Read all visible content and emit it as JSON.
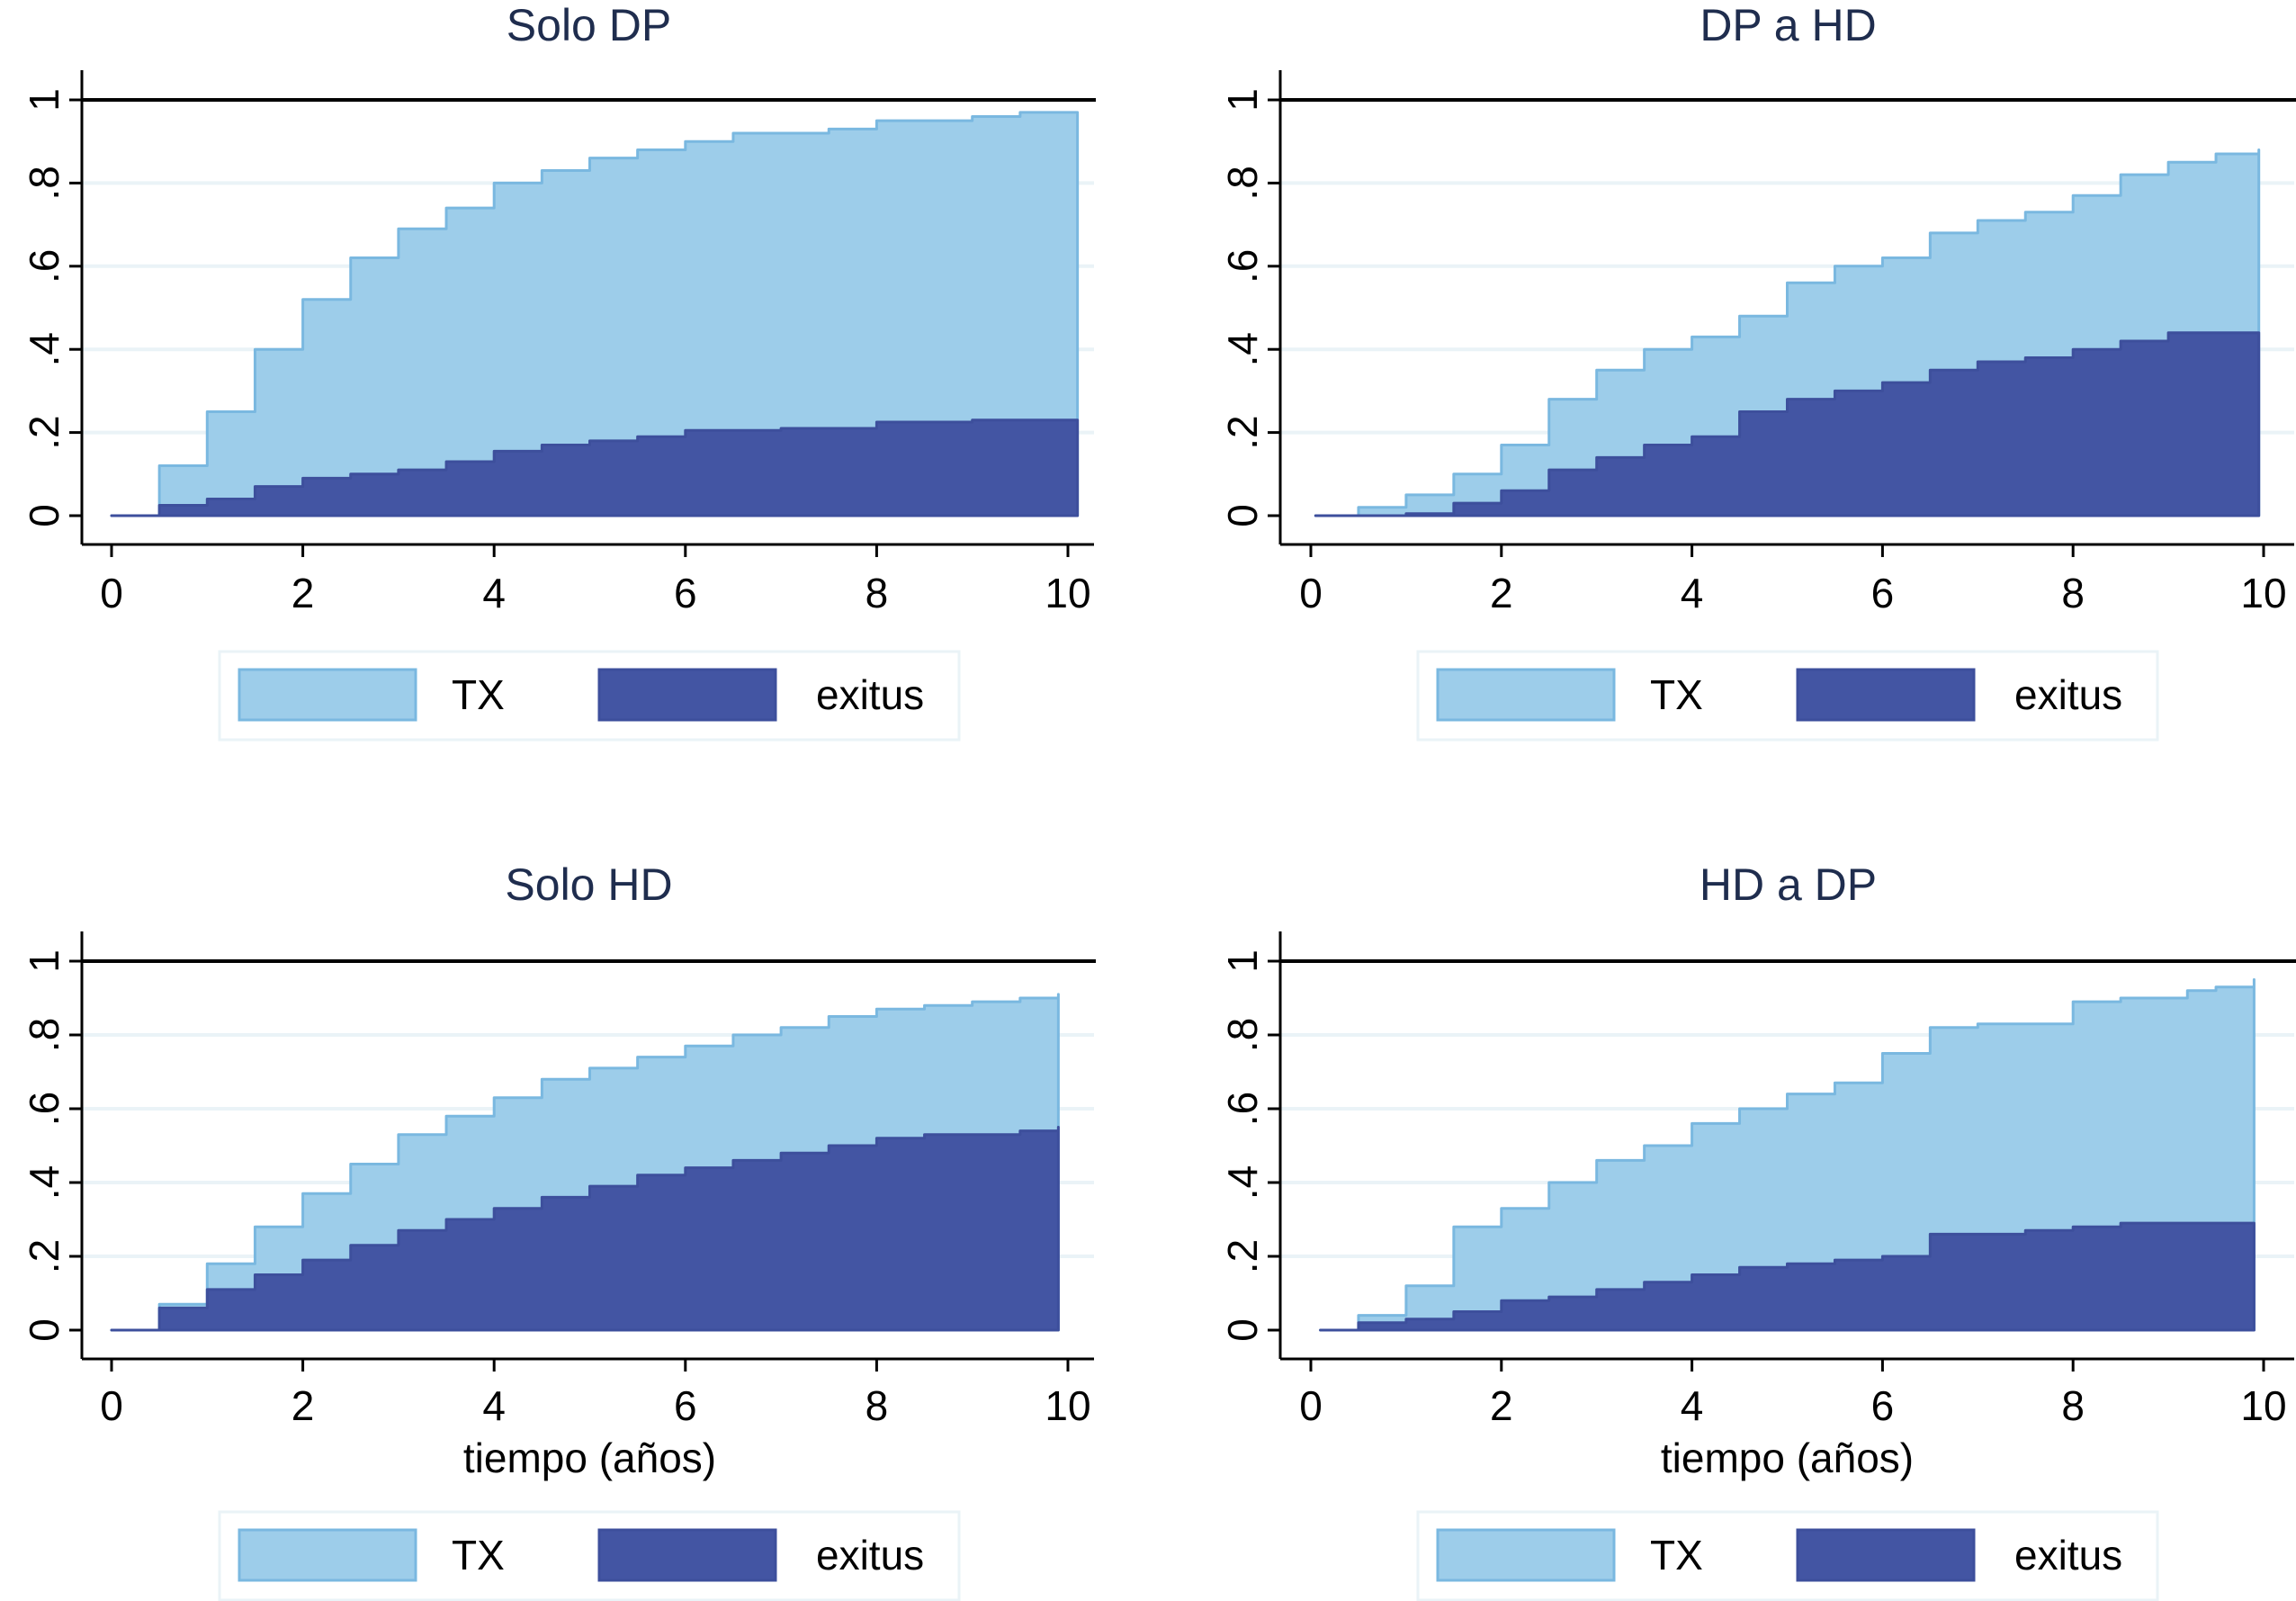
{
  "chart_data": [
    {
      "type": "area",
      "title": "Solo DP",
      "xlabel": "",
      "ylabel": "",
      "xlim": [
        0,
        10
      ],
      "ylim": [
        0,
        1
      ],
      "xticks": [
        "0",
        "2",
        "4",
        "6",
        "8",
        "10"
      ],
      "yticks": [
        "0",
        ".2",
        ".4",
        ".6",
        ".8",
        "1"
      ],
      "reference_line_y": 1,
      "grid": true,
      "legend": {
        "position": "bottom",
        "entries": [
          "TX",
          "exitus"
        ]
      },
      "series": [
        {
          "name": "TX",
          "color": "#9dcdea",
          "stacked_top": true,
          "x": [
            0,
            0.5,
            1,
            1.5,
            2,
            2.5,
            3,
            3.5,
            4,
            4.5,
            5,
            5.5,
            6,
            6.5,
            7,
            7.5,
            8,
            8.5,
            9,
            9.5,
            10.1
          ],
          "y": [
            0,
            0.12,
            0.25,
            0.4,
            0.52,
            0.62,
            0.69,
            0.74,
            0.8,
            0.83,
            0.86,
            0.88,
            0.9,
            0.92,
            0.92,
            0.93,
            0.95,
            0.95,
            0.96,
            0.97,
            0.97
          ]
        },
        {
          "name": "exitus",
          "color": "#4355a3",
          "x": [
            0,
            0.5,
            1,
            1.5,
            2,
            2.5,
            3,
            3.5,
            4,
            4.5,
            5,
            5.5,
            6,
            7,
            8,
            9,
            10.1
          ],
          "y": [
            0,
            0.025,
            0.04,
            0.07,
            0.09,
            0.1,
            0.11,
            0.13,
            0.155,
            0.17,
            0.18,
            0.19,
            0.205,
            0.21,
            0.225,
            0.23,
            0.23
          ]
        }
      ]
    },
    {
      "type": "area",
      "title": "DP a HD",
      "xlabel": "",
      "ylabel": "",
      "xlim": [
        0,
        10
      ],
      "ylim": [
        0,
        1
      ],
      "xticks": [
        "0",
        "2",
        "4",
        "6",
        "8",
        "10"
      ],
      "yticks": [
        "0",
        ".2",
        ".4",
        ".6",
        ".8",
        "1"
      ],
      "reference_line_y": 1,
      "grid": true,
      "legend": {
        "position": "bottom",
        "entries": [
          "TX",
          "exitus"
        ]
      },
      "series": [
        {
          "name": "TX",
          "color": "#9dcdea",
          "x": [
            0.05,
            0.5,
            1,
            1.5,
            2,
            2.5,
            3,
            3.5,
            4,
            4.5,
            5,
            5.5,
            6,
            6.5,
            7,
            7.5,
            8,
            8.5,
            9,
            9.5,
            9.95
          ],
          "y": [
            0,
            0.02,
            0.05,
            0.1,
            0.17,
            0.28,
            0.35,
            0.4,
            0.43,
            0.48,
            0.56,
            0.6,
            0.62,
            0.68,
            0.71,
            0.73,
            0.77,
            0.82,
            0.85,
            0.87,
            0.88
          ]
        },
        {
          "name": "exitus",
          "color": "#4355a3",
          "x": [
            0.05,
            1,
            1.5,
            2,
            2.5,
            3,
            3.5,
            4,
            4.5,
            5,
            5.5,
            6,
            6.5,
            7,
            7.5,
            8,
            8.5,
            9,
            9.95
          ],
          "y": [
            0,
            0.005,
            0.03,
            0.06,
            0.11,
            0.14,
            0.17,
            0.19,
            0.25,
            0.28,
            0.3,
            0.32,
            0.35,
            0.37,
            0.38,
            0.4,
            0.42,
            0.44,
            0.44
          ]
        }
      ]
    },
    {
      "type": "area",
      "title": "Solo HD",
      "xlabel": "tiempo (años)",
      "ylabel": "",
      "xlim": [
        0,
        10
      ],
      "ylim": [
        0,
        1
      ],
      "xticks": [
        "0",
        "2",
        "4",
        "6",
        "8",
        "10"
      ],
      "yticks": [
        "0",
        ".2",
        ".4",
        ".6",
        ".8",
        "1"
      ],
      "reference_line_y": 1,
      "grid": true,
      "legend": {
        "position": "bottom",
        "entries": [
          "TX",
          "exitus"
        ]
      },
      "series": [
        {
          "name": "TX",
          "color": "#9dcdea",
          "x": [
            0,
            0.5,
            1,
            1.5,
            2,
            2.5,
            3,
            3.5,
            4,
            4.5,
            5,
            5.5,
            6,
            6.5,
            7,
            7.5,
            8,
            8.5,
            9,
            9.5,
            9.9
          ],
          "y": [
            0,
            0.07,
            0.18,
            0.28,
            0.37,
            0.45,
            0.53,
            0.58,
            0.63,
            0.68,
            0.71,
            0.74,
            0.77,
            0.8,
            0.82,
            0.85,
            0.87,
            0.88,
            0.89,
            0.9,
            0.91
          ]
        },
        {
          "name": "exitus",
          "color": "#4355a3",
          "x": [
            0,
            0.5,
            1,
            1.5,
            2,
            2.5,
            3,
            3.5,
            4,
            4.5,
            5,
            5.5,
            6,
            6.5,
            7,
            7.5,
            8,
            8.5,
            9,
            9.5,
            9.9
          ],
          "y": [
            0,
            0.06,
            0.11,
            0.15,
            0.19,
            0.23,
            0.27,
            0.3,
            0.33,
            0.36,
            0.39,
            0.42,
            0.44,
            0.46,
            0.48,
            0.5,
            0.52,
            0.53,
            0.53,
            0.54,
            0.55
          ]
        }
      ]
    },
    {
      "type": "area",
      "title": "HD a DP",
      "xlabel": "tiempo (años)",
      "ylabel": "",
      "xlim": [
        0,
        10
      ],
      "ylim": [
        0,
        1
      ],
      "xticks": [
        "0",
        "2",
        "4",
        "6",
        "8",
        "10"
      ],
      "yticks": [
        "0",
        ".2",
        ".4",
        ".6",
        ".8",
        "1"
      ],
      "reference_line_y": 1,
      "grid": true,
      "legend": {
        "position": "bottom",
        "entries": [
          "TX",
          "exitus"
        ]
      },
      "series": [
        {
          "name": "TX",
          "color": "#9dcdea",
          "x": [
            0.1,
            0.5,
            1,
            1.5,
            2,
            2.5,
            3,
            3.5,
            4,
            4.5,
            5,
            5.5,
            6,
            6.5,
            7,
            7.5,
            8,
            8.5,
            9,
            9.2,
            9.5,
            9.9
          ],
          "y": [
            0,
            0.04,
            0.12,
            0.28,
            0.33,
            0.4,
            0.46,
            0.5,
            0.56,
            0.6,
            0.64,
            0.67,
            0.75,
            0.82,
            0.83,
            0.83,
            0.89,
            0.9,
            0.9,
            0.92,
            0.93,
            0.95
          ]
        },
        {
          "name": "exitus",
          "color": "#4355a3",
          "x": [
            0.1,
            0.5,
            1,
            1.5,
            2,
            2.5,
            3,
            3.5,
            4,
            4.5,
            5,
            5.5,
            6,
            6.5,
            7,
            7.5,
            8,
            8.5,
            9,
            9.9
          ],
          "y": [
            0,
            0.02,
            0.03,
            0.05,
            0.08,
            0.09,
            0.11,
            0.13,
            0.15,
            0.17,
            0.18,
            0.19,
            0.2,
            0.26,
            0.26,
            0.27,
            0.28,
            0.29,
            0.29,
            0.29
          ]
        }
      ]
    }
  ]
}
